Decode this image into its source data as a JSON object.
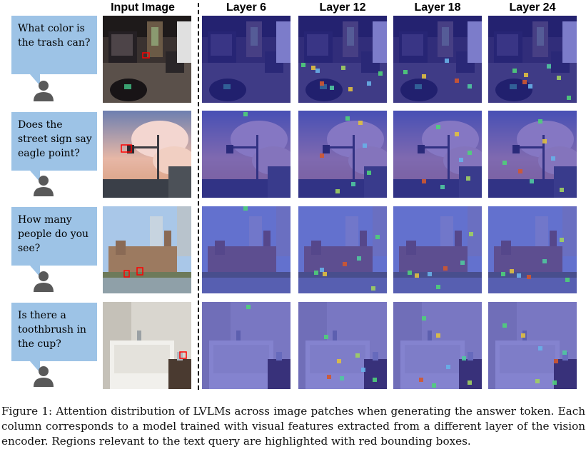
{
  "figure": {
    "column_headers": [
      "Input Image",
      "Layer 6",
      "Layer 12",
      "Layer 18",
      "Layer 24"
    ],
    "rows": [
      {
        "question": "What color is the trash can?",
        "scene": "clothing store interior"
      },
      {
        "question": "Does the street sign say eagle point?",
        "scene": "street sign under cloudy sunset sky"
      },
      {
        "question": "How many people do you see?",
        "scene": "city hall building with towers"
      },
      {
        "question": "Is there a toothbrush in the cup?",
        "scene": "bathroom with bathtub"
      }
    ],
    "caption": "Figure 1: Attention distribution of LVLMs across image patches when generating the answer token. Each column corresponds to a model trained with visual features extracted from a different layer of the vision encoder. Regions relevant to the text query are highlighted with red bounding boxes."
  },
  "colors": {
    "bubble": "#9DC3E6",
    "user_icon": "#595959",
    "bounding_box": "#FF0000",
    "attention_overlay": "#2A2AB8"
  },
  "icons": {
    "user": "person-icon"
  }
}
